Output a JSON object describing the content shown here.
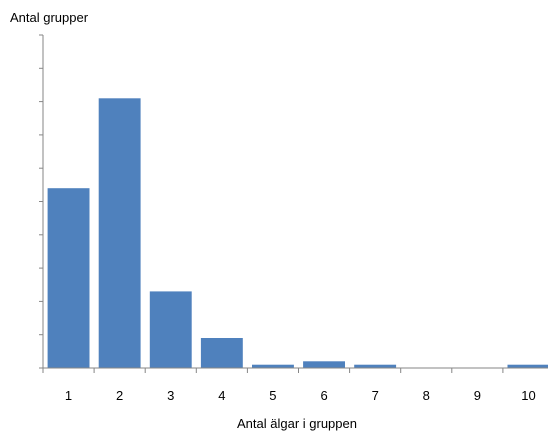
{
  "chart_data": {
    "type": "bar",
    "categories": [
      "1",
      "2",
      "3",
      "4",
      "5",
      "6",
      "7",
      "8",
      "9",
      "10"
    ],
    "values": [
      5.4,
      8.1,
      2.3,
      0.9,
      0.1,
      0.2,
      0.1,
      0,
      0,
      0.1
    ],
    "title": "",
    "ylabel": "Antal grupper",
    "xlabel": "Antal älgar i gruppen",
    "ylim": [
      0,
      10
    ],
    "y_tick_labels_shown": false,
    "grid": false,
    "legend": "none",
    "bar_color": "#4f81bd",
    "axis_color": "#868686"
  }
}
